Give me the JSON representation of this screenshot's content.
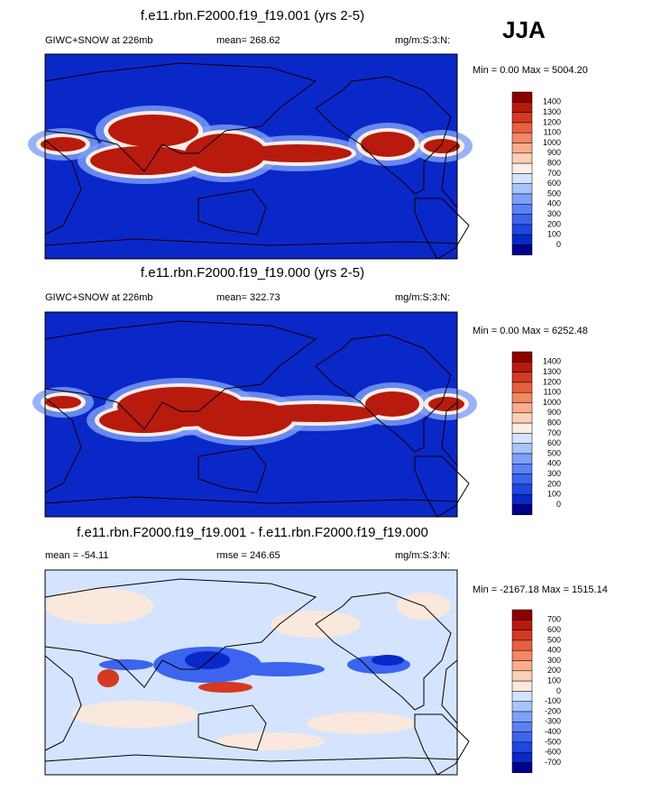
{
  "header": {
    "season": "JJA"
  },
  "panels": [
    {
      "title": "f.e11.rbn.F2000.f19_f19.001 (yrs 2-5)",
      "left": "GIWC+SNOW at 226mb",
      "center": "mean= 268.62",
      "right": "mg/m:S:3:N:",
      "range": "Min =  0.00 Max = 5004.20",
      "colorbar": {
        "labels": [
          "1400",
          "1300",
          "1200",
          "1100",
          "1000",
          "900",
          "800",
          "700",
          "600",
          "500",
          "400",
          "300",
          "200",
          "100",
          "0"
        ],
        "colors": [
          "#8c0000",
          "#b81a0e",
          "#d43a22",
          "#e86040",
          "#f28864",
          "#f8ae8c",
          "#fcd0b8",
          "#fbeee4",
          "#d4e4fe",
          "#a8c4fc",
          "#7ea0f8",
          "#5a82f4",
          "#3c64ee",
          "#1e46e0",
          "#0a28c8",
          "#00008c"
        ]
      }
    },
    {
      "title": "f.e11.rbn.F2000.f19_f19.000 (yrs 2-5)",
      "left": "GIWC+SNOW at 226mb",
      "center": "mean= 322.73",
      "right": "mg/m:S:3:N:",
      "range": "Min =  0.00 Max = 6252.48",
      "colorbar": {
        "labels": [
          "1400",
          "1300",
          "1200",
          "1100",
          "1000",
          "900",
          "800",
          "700",
          "600",
          "500",
          "400",
          "300",
          "200",
          "100",
          "0"
        ],
        "colors": [
          "#8c0000",
          "#b81a0e",
          "#d43a22",
          "#e86040",
          "#f28864",
          "#f8ae8c",
          "#fcd0b8",
          "#fbeee4",
          "#d4e4fe",
          "#a8c4fc",
          "#7ea0f8",
          "#5a82f4",
          "#3c64ee",
          "#1e46e0",
          "#0a28c8",
          "#00008c"
        ]
      }
    },
    {
      "title": "f.e11.rbn.F2000.f19_f19.001 - f.e11.rbn.F2000.f19_f19.000",
      "left": "mean = -54.11",
      "center": "rmse = 246.65",
      "right": "mg/m:S:3:N:",
      "range": "Min = -2167.18 Max = 1515.14",
      "colorbar": {
        "labels": [
          "700",
          "600",
          "500",
          "400",
          "300",
          "200",
          "100",
          "0",
          "-100",
          "-200",
          "-300",
          "-400",
          "-500",
          "-600",
          "-700"
        ],
        "colors": [
          "#8c0000",
          "#b81a0e",
          "#d43a22",
          "#e86040",
          "#f28864",
          "#f8ae8c",
          "#fcd0b8",
          "#fbe8dc",
          "#d4e4fe",
          "#a8c4fc",
          "#7ea0f8",
          "#5a82f4",
          "#3c64ee",
          "#1e46e0",
          "#0a28c8",
          "#00008c"
        ]
      }
    }
  ]
}
